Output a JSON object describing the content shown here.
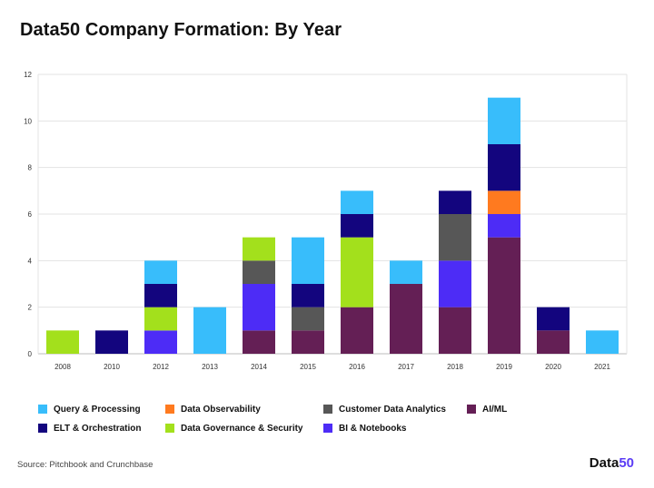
{
  "page": {
    "title": "Data50 Company Formation: By Year",
    "source": "Source: Pitchbook and Crunchbase",
    "brand": {
      "main": "Data",
      "accent": "50"
    }
  },
  "legend": [
    {
      "label": "Query & Processing",
      "color": "#38bdfb"
    },
    {
      "label": "Data Observability",
      "color": "#ff7a1f"
    },
    {
      "label": "Customer Data Analytics",
      "color": "#575757"
    },
    {
      "label": "AI/ML",
      "color": "#641f55"
    },
    {
      "label": "ELT & Orchestration",
      "color": "#13057e"
    },
    {
      "label": "Data Governance & Security",
      "color": "#a3e01c"
    },
    {
      "label": "BI & Notebooks",
      "color": "#4d2cf6"
    }
  ],
  "chart_data": {
    "type": "bar",
    "stacked": true,
    "title": "Data50 Company Formation: By Year",
    "xlabel": "",
    "ylabel": "",
    "ylim": [
      0,
      12
    ],
    "yticks": [
      0,
      2,
      4,
      6,
      8,
      10,
      12
    ],
    "grid": true,
    "legend_position": "bottom",
    "categories": [
      "2008",
      "2010",
      "2012",
      "2013",
      "2014",
      "2015",
      "2016",
      "2017",
      "2018",
      "2019",
      "2020",
      "2021"
    ],
    "series": [
      {
        "name": "AI/ML",
        "color": "#641f55",
        "values": [
          0,
          0,
          0,
          0,
          1,
          1,
          2,
          3,
          2,
          5,
          1,
          0
        ]
      },
      {
        "name": "BI & Notebooks",
        "color": "#4d2cf6",
        "values": [
          0,
          0,
          1,
          0,
          2,
          0,
          0,
          0,
          2,
          1,
          0,
          0
        ]
      },
      {
        "name": "Customer Data Analytics",
        "color": "#575757",
        "values": [
          0,
          0,
          0,
          0,
          1,
          1,
          0,
          0,
          2,
          0,
          0,
          0
        ]
      },
      {
        "name": "Data Governance & Security",
        "color": "#a3e01c",
        "values": [
          1,
          0,
          1,
          0,
          1,
          0,
          3,
          0,
          0,
          0,
          0,
          0
        ]
      },
      {
        "name": "Data Observability",
        "color": "#ff7a1f",
        "values": [
          0,
          0,
          0,
          0,
          0,
          0,
          0,
          0,
          0,
          1,
          0,
          0
        ]
      },
      {
        "name": "ELT & Orchestration",
        "color": "#13057e",
        "values": [
          0,
          1,
          1,
          0,
          0,
          1,
          1,
          0,
          1,
          2,
          1,
          0
        ]
      },
      {
        "name": "Query & Processing",
        "color": "#38bdfb",
        "values": [
          0,
          0,
          1,
          2,
          0,
          2,
          1,
          1,
          0,
          2,
          0,
          1
        ]
      }
    ]
  }
}
